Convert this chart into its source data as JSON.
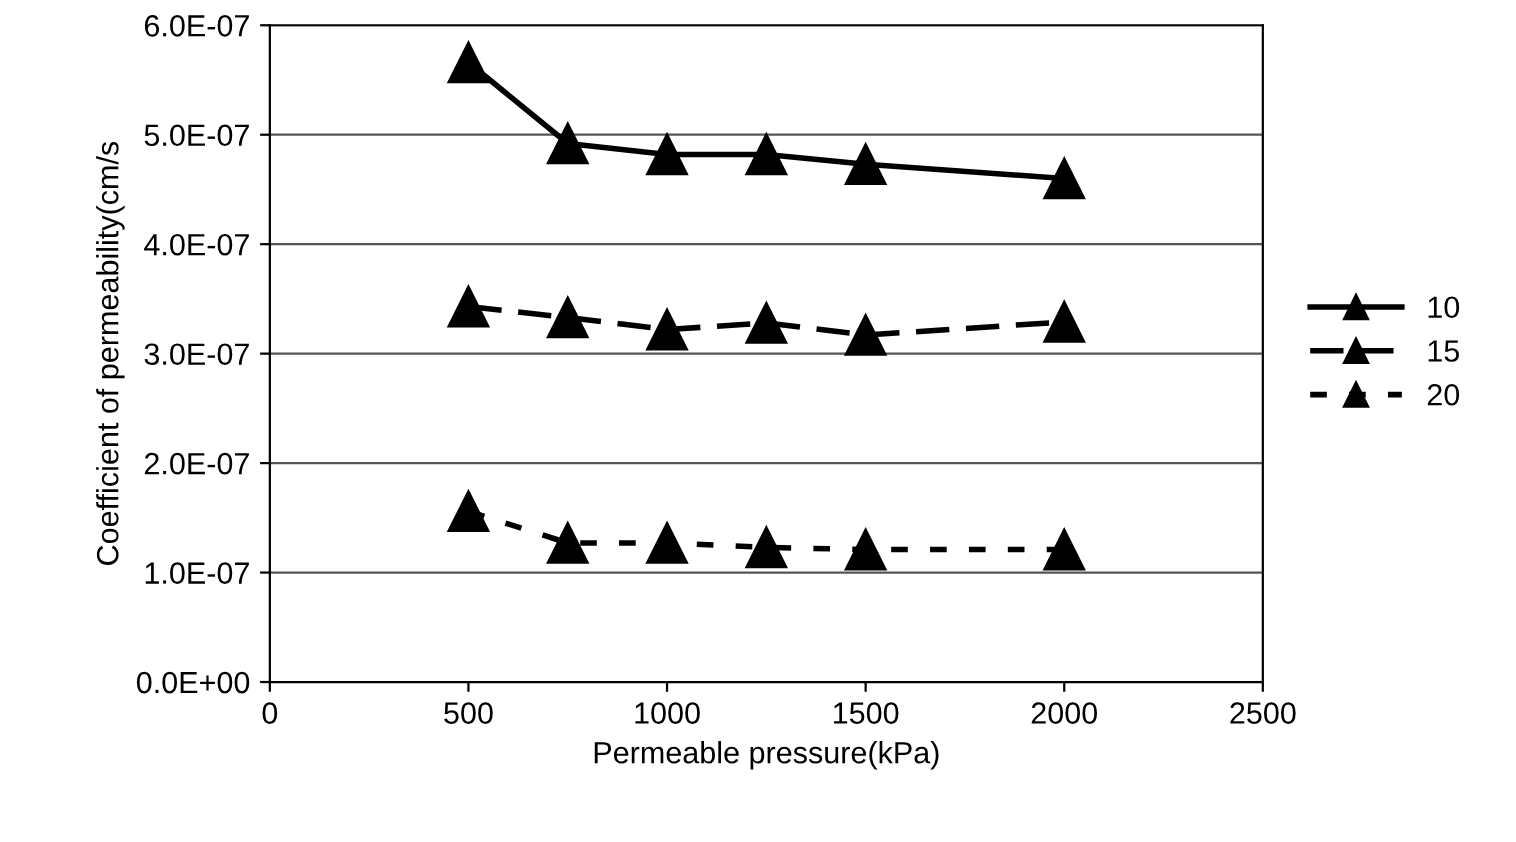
{
  "chart_data": {
    "type": "line",
    "xlabel": "Permeable pressure(kPa)",
    "ylabel": "Coefficient of permeability(cm/s",
    "x": [
      500,
      750,
      1000,
      1250,
      1500,
      2000
    ],
    "series": [
      {
        "name": "10",
        "color": "#000000",
        "line_style": "solid",
        "values": [
          5.66e-07,
          4.92e-07,
          4.82e-07,
          4.82e-07,
          4.73e-07,
          4.6e-07
        ]
      },
      {
        "name": "15",
        "color": "#000000",
        "line_style": "dashed",
        "values": [
          3.43e-07,
          3.33e-07,
          3.22e-07,
          3.28e-07,
          3.17e-07,
          3.29e-07
        ]
      },
      {
        "name": "20",
        "color": "#000000",
        "line_style": "dotted",
        "values": [
          1.56e-07,
          1.27e-07,
          1.27e-07,
          1.23e-07,
          1.21e-07,
          1.21e-07
        ]
      }
    ],
    "marker": "triangle",
    "xlim": [
      0,
      2500
    ],
    "xticks": [
      0,
      500,
      1000,
      1500,
      2000,
      2500
    ],
    "ylim": [
      0,
      6e-07
    ],
    "yticks": [
      {
        "value": 0,
        "label": "0.0E+00"
      },
      {
        "value": 1e-07,
        "label": "1.0E-07"
      },
      {
        "value": 2e-07,
        "label": "2.0E-07"
      },
      {
        "value": 3e-07,
        "label": "3.0E-07"
      },
      {
        "value": 4e-07,
        "label": "4.0E-07"
      },
      {
        "value": 5e-07,
        "label": "5.0E-07"
      },
      {
        "value": 6e-07,
        "label": "6.0E-07"
      }
    ],
    "grid": "y",
    "legend": "right"
  }
}
